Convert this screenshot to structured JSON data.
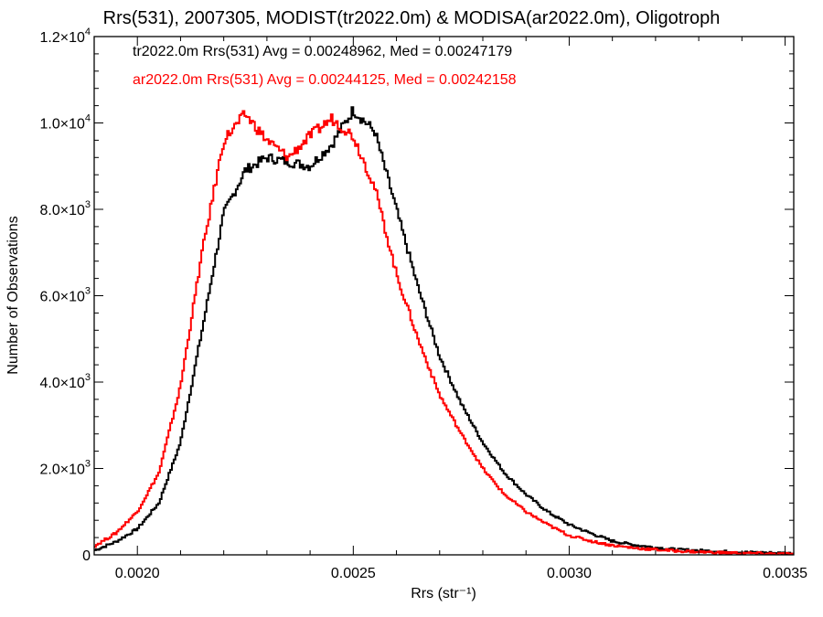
{
  "chart_data": {
    "type": "line",
    "title": "Rrs(531), 2007305, MODIST(tr2022.0m) & MODISA(ar2022.0m), Oligotroph",
    "xlabel": "Rrs (str⁻¹)",
    "ylabel": "Number of Observations",
    "xlim": [
      0.0019,
      0.00352
    ],
    "ylim": [
      0,
      12000
    ],
    "x_ticks": [
      {
        "value": 0.002,
        "label": "0.0020"
      },
      {
        "value": 0.0025,
        "label": "0.0025"
      },
      {
        "value": 0.003,
        "label": "0.0030"
      },
      {
        "value": 0.0035,
        "label": "0.0035"
      }
    ],
    "y_ticks": [
      {
        "value": 0,
        "mant": "0",
        "exp": ""
      },
      {
        "value": 2000,
        "mant": "2.0×10",
        "exp": "3"
      },
      {
        "value": 4000,
        "mant": "4.0×10",
        "exp": "3"
      },
      {
        "value": 6000,
        "mant": "6.0×10",
        "exp": "3"
      },
      {
        "value": 8000,
        "mant": "8.0×10",
        "exp": "3"
      },
      {
        "value": 10000,
        "mant": "1.0×10",
        "exp": "4"
      },
      {
        "value": 12000,
        "mant": "1.2×10",
        "exp": "4"
      }
    ],
    "grid": false,
    "step": true,
    "series": [
      {
        "name": "tr2022.0m",
        "color": "#000000",
        "annotation": "tr2022.0m Rrs(531) Avg = 0.00248962, Med = 0.00247179",
        "x": [
          0.0019,
          0.00195,
          0.002,
          0.00205,
          0.0021,
          0.00215,
          0.0022,
          0.00225,
          0.0023,
          0.00235,
          0.0024,
          0.00245,
          0.0025,
          0.00255,
          0.0026,
          0.00265,
          0.0027,
          0.00275,
          0.0028,
          0.00285,
          0.0029,
          0.00295,
          0.003,
          0.00305,
          0.0031,
          0.00315,
          0.0032,
          0.00325,
          0.0033,
          0.00335,
          0.0034,
          0.00345,
          0.0035,
          0.00352
        ],
        "y": [
          100,
          300,
          600,
          1200,
          2600,
          5200,
          7900,
          8900,
          9200,
          9100,
          9000,
          9500,
          10300,
          9800,
          8000,
          6200,
          4600,
          3500,
          2600,
          1900,
          1400,
          1000,
          700,
          500,
          320,
          230,
          170,
          120,
          100,
          80,
          60,
          50,
          40,
          30
        ]
      },
      {
        "name": "ar2022.0m",
        "color": "#ff0000",
        "annotation": "ar2022.0m Rrs(531) Avg = 0.00244125, Med = 0.00242158",
        "x": [
          0.0019,
          0.00195,
          0.002,
          0.00205,
          0.0021,
          0.00215,
          0.0022,
          0.00225,
          0.0023,
          0.00235,
          0.0024,
          0.00245,
          0.0025,
          0.00255,
          0.0026,
          0.00265,
          0.0027,
          0.00275,
          0.0028,
          0.00285,
          0.0029,
          0.00295,
          0.003,
          0.00305,
          0.0031,
          0.00315,
          0.0032,
          0.00325,
          0.0033,
          0.00335,
          0.0034,
          0.00345,
          0.0035,
          0.00352
        ],
        "y": [
          200,
          500,
          1000,
          1900,
          3900,
          7000,
          9600,
          10200,
          9600,
          9200,
          9700,
          10100,
          9700,
          8500,
          6500,
          5000,
          3700,
          2800,
          2000,
          1400,
          1000,
          700,
          450,
          320,
          220,
          160,
          120,
          90,
          70,
          50,
          40,
          30,
          20,
          10
        ]
      }
    ]
  }
}
